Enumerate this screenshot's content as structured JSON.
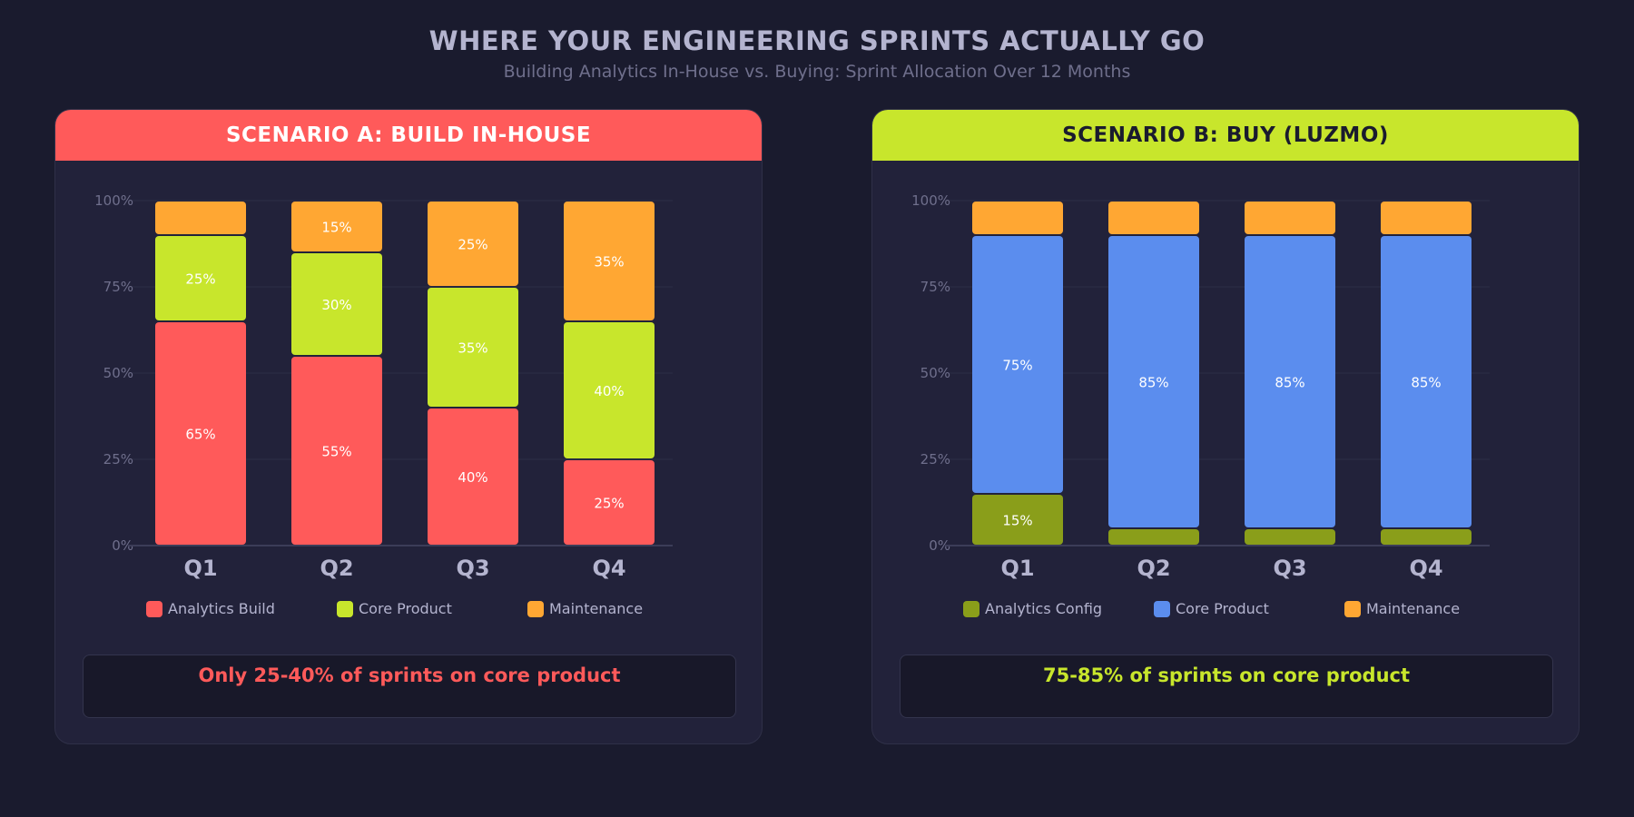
{
  "title": "WHERE YOUR ENGINEERING SPRINTS ACTUALLY GO",
  "subtitle": "Building Analytics In-House vs. Buying: Sprint Allocation Over 12 Months",
  "chart_data": [
    {
      "type": "bar",
      "stacked": true,
      "title": "SCENARIO A: BUILD IN-HOUSE",
      "header_color": "#ff5a5a",
      "categories": [
        "Q1",
        "Q2",
        "Q3",
        "Q4"
      ],
      "yticks": [
        "0%",
        "25%",
        "50%",
        "75%",
        "100%"
      ],
      "ylim": [
        0,
        100
      ],
      "series": [
        {
          "name": "Analytics Build",
          "color": "#ff5a5a",
          "values": [
            65,
            55,
            40,
            25
          ],
          "labels": [
            "65%",
            "55%",
            "40%",
            "25%"
          ]
        },
        {
          "name": "Core Product",
          "color": "#c8e62c",
          "values": [
            25,
            30,
            35,
            40
          ],
          "labels": [
            "25%",
            "30%",
            "35%",
            "40%"
          ]
        },
        {
          "name": "Maintenance",
          "color": "#ffa733",
          "values": [
            10,
            15,
            25,
            35
          ],
          "labels": [
            "",
            "15%",
            "25%",
            "35%"
          ]
        }
      ],
      "callout": "Only 25-40% of sprints on core product",
      "callout_color": "#ff5a5a"
    },
    {
      "type": "bar",
      "stacked": true,
      "title": "SCENARIO B: BUY (LUZMO)",
      "header_color": "#c8e62c",
      "categories": [
        "Q1",
        "Q2",
        "Q3",
        "Q4"
      ],
      "yticks": [
        "0%",
        "25%",
        "50%",
        "75%",
        "100%"
      ],
      "ylim": [
        0,
        100
      ],
      "series": [
        {
          "name": "Analytics Config",
          "color": "#8a9e1a",
          "values": [
            15,
            5,
            5,
            5
          ],
          "labels": [
            "15%",
            "",
            "",
            ""
          ]
        },
        {
          "name": "Core Product",
          "color": "#5b8dee",
          "values": [
            75,
            85,
            85,
            85
          ],
          "labels": [
            "75%",
            "85%",
            "85%",
            "85%"
          ]
        },
        {
          "name": "Maintenance",
          "color": "#ffa733",
          "values": [
            10,
            10,
            10,
            10
          ],
          "labels": [
            "",
            "",
            "",
            ""
          ]
        }
      ],
      "callout": "75-85% of sprints on core product",
      "callout_color": "#c8e62c"
    }
  ]
}
